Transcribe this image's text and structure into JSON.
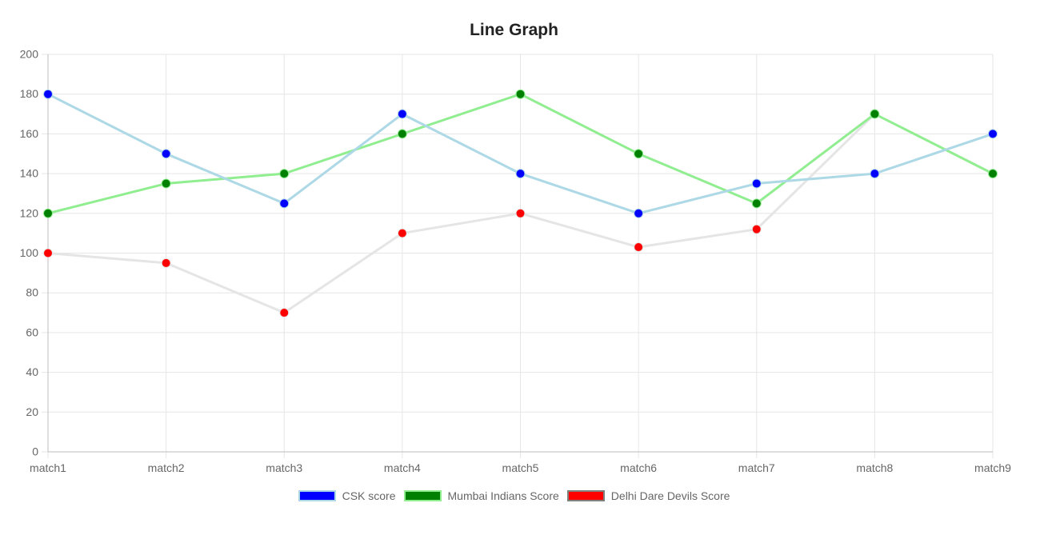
{
  "chart_data": {
    "type": "line",
    "title": "Line Graph",
    "categories": [
      "match1",
      "match2",
      "match3",
      "match4",
      "match5",
      "match6",
      "match7",
      "match8",
      "match9"
    ],
    "ylim": [
      0,
      200
    ],
    "yticks": [
      0,
      20,
      40,
      60,
      80,
      100,
      120,
      140,
      160,
      180,
      200
    ],
    "grid": true,
    "legend_position": "bottom",
    "series": [
      {
        "name": "CSK score",
        "values": [
          180,
          150,
          125,
          170,
          140,
          120,
          135,
          140,
          160
        ],
        "line_color": "#add8e6",
        "point_color": "#0000ff",
        "legend_border": "#add8e6"
      },
      {
        "name": "Mumbai Indians Score",
        "values": [
          120,
          135,
          140,
          160,
          180,
          150,
          125,
          170,
          140
        ],
        "line_color": "#90ee90",
        "point_color": "#008000",
        "legend_border": "#90ee90"
      },
      {
        "name": "Delhi Dare Devils Score",
        "values": [
          100,
          95,
          70,
          110,
          120,
          103,
          112,
          170,
          null
        ],
        "line_color": "#e5e5e5",
        "point_color": "#ff0000",
        "legend_border": "#808080"
      }
    ]
  }
}
